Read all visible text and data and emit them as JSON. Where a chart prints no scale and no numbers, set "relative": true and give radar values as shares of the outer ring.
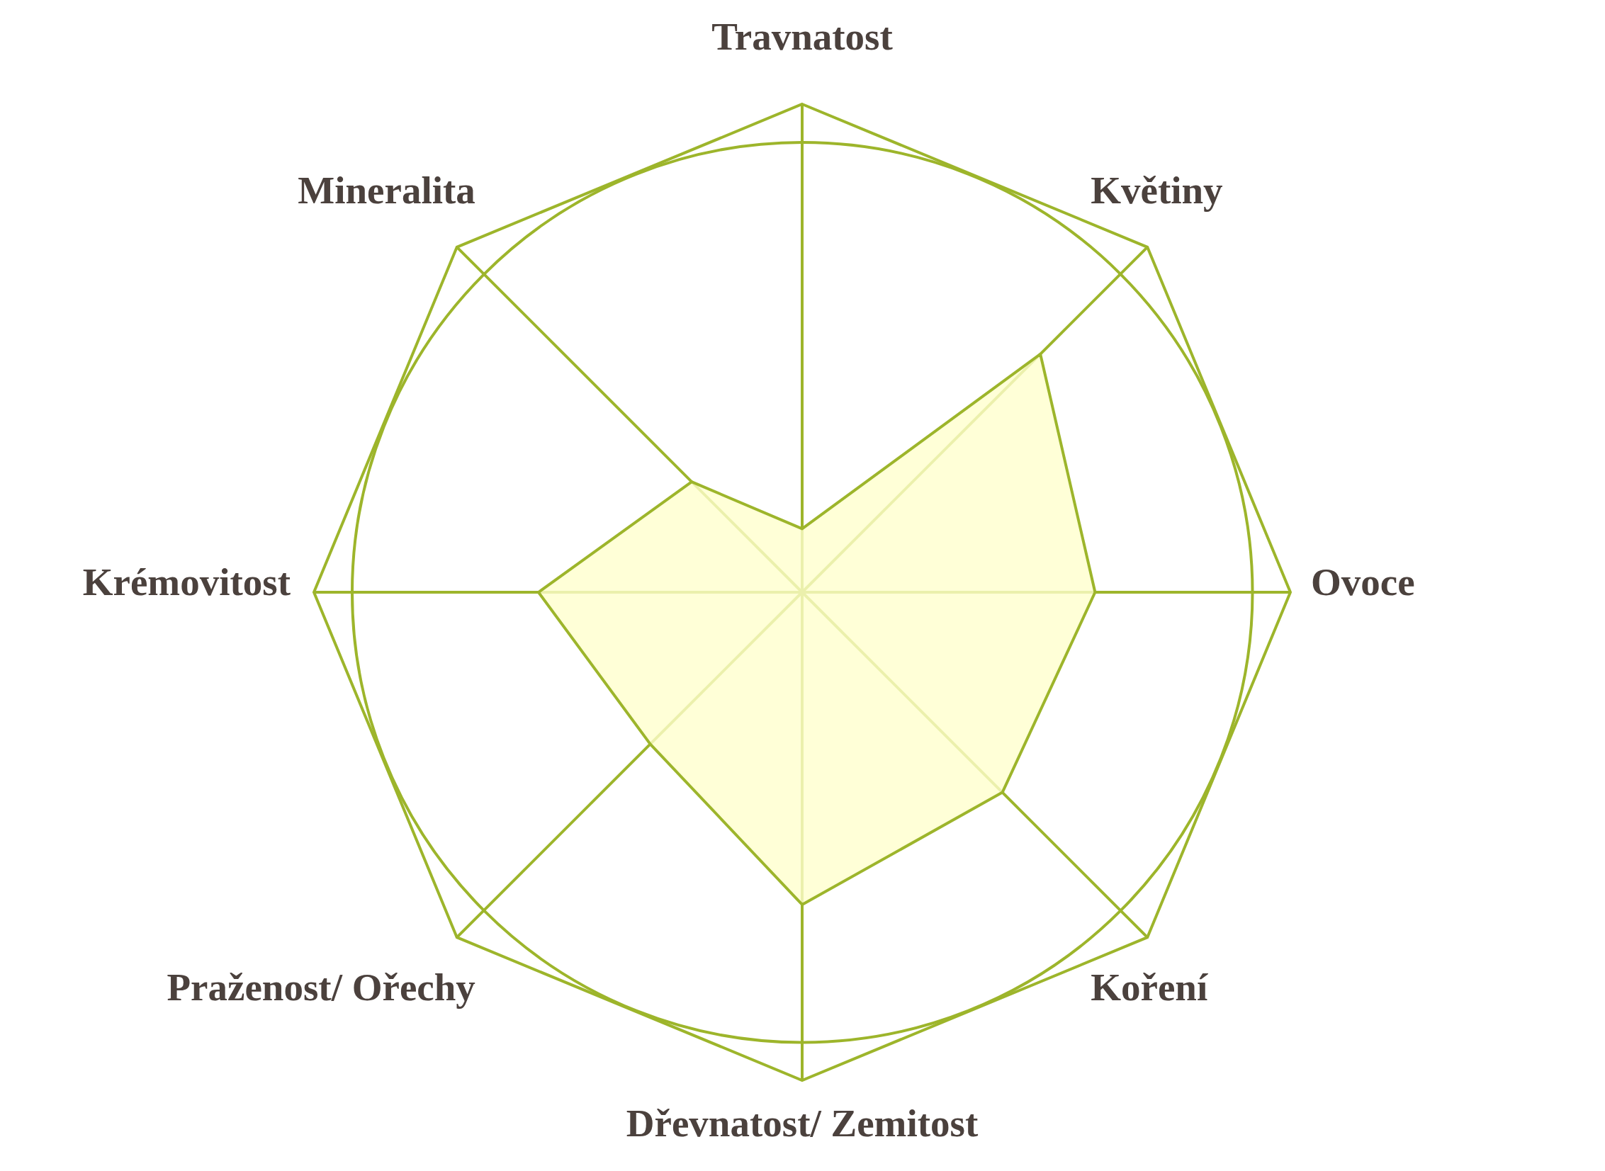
{
  "chart_data": {
    "type": "radar",
    "categories": [
      "Travnatost",
      "Květiny",
      "Ovoce",
      "Koření",
      "Dřevnatost/ Zemitost",
      "Praženost/ Ořechy",
      "Krémovitost",
      "Mineralita"
    ],
    "relative": true,
    "grid": true,
    "marker": "none",
    "series": [
      {
        "color": "#ffffd7",
        "values": [
          0.13,
          0.69,
          0.6,
          0.58,
          0.64,
          0.44,
          0.54,
          0.32
        ]
      }
    ]
  }
}
